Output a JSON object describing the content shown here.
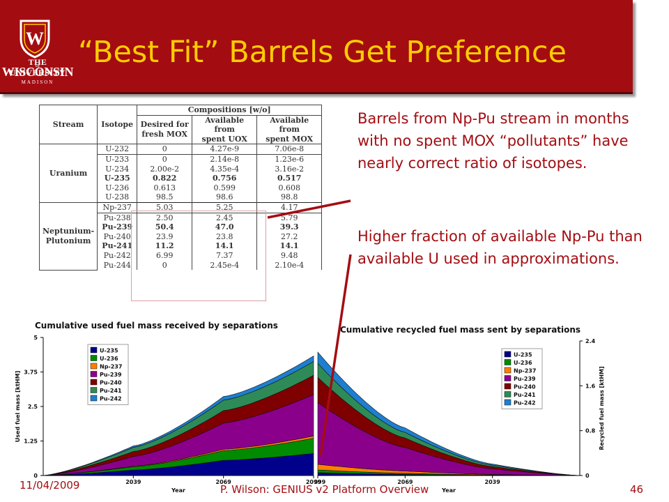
{
  "slide": {
    "title": "“Best Fit” Barrels Get Preference",
    "logo": {
      "line1": "THE UNIVERSITY",
      "line2": "of",
      "line3": "WISCONSIN",
      "line4": "MADISON",
      "crest_letter": "W"
    },
    "paragraphs": [
      "Barrels from Np-Pu stream in months with no spent MOX “pollutants” have nearly correct ratio of isotopes.",
      "Higher fraction of available Np-Pu than available U used in approximations."
    ],
    "footer": {
      "date": "11/04/2009",
      "author": "P. Wilson: GENIUS v2 Platform Overview",
      "page": "46"
    },
    "colors": {
      "banner": "#a30d12",
      "title": "#ffcc00",
      "body_text": "#a30d12",
      "pointer": "#a30d12"
    }
  },
  "table": {
    "h_stream": "Stream",
    "h_isotope": "Isotope",
    "h_group": "Compositions [w/o]",
    "h_col1a": "Desired for",
    "h_col1b": "fresh MOX",
    "h_col2a": "Available from",
    "h_col2b": "spent UOX",
    "h_col3a": "Available from",
    "h_col3b": "spent MOX",
    "group1": "Uranium",
    "group2a": "Neptunium-",
    "group2b": "Plutonium",
    "rows": [
      [
        "U-232",
        "0",
        "4.27e-9",
        "7.06e-8"
      ],
      [
        "U-233",
        "0",
        "2.14e-8",
        "1.23e-6"
      ],
      [
        "U-234",
        "2.00e-2",
        "4.35e-4",
        "3.16e-2"
      ],
      [
        "U-235",
        "0.822",
        "0.756",
        "0.517"
      ],
      [
        "U-236",
        "0.613",
        "0.599",
        "0.608"
      ],
      [
        "U-238",
        "98.5",
        "98.6",
        "98.8"
      ],
      [
        "Np-237",
        "5.03",
        "5.25",
        "4.17"
      ],
      [
        "Pu-238",
        "2.50",
        "2.45",
        "5.79"
      ],
      [
        "Pu-239",
        "50.4",
        "47.0",
        "39.3"
      ],
      [
        "Pu-240",
        "23.9",
        "23.8",
        "27.2"
      ],
      [
        "Pu-241",
        "11.2",
        "14.1",
        "14.1"
      ],
      [
        "Pu-242",
        "6.99",
        "7.37",
        "9.48"
      ],
      [
        "Pu-244",
        "0",
        "2.45e-4",
        "2.10e-4"
      ]
    ]
  },
  "chart_data": [
    {
      "type": "area",
      "title": "Cumulative used fuel mass received by separations",
      "xlabel": "Year",
      "ylabel": "Used fuel mass [ktHM]",
      "x": [
        2009,
        2039,
        2069,
        2099
      ],
      "xticks": [
        "2039",
        "2069",
        "2099"
      ],
      "ylim": [
        0,
        5
      ],
      "yticks": [
        "0",
        "1.25",
        "2.5",
        "3.75",
        "5"
      ],
      "legend_position": "top-left",
      "series": [
        {
          "name": "U-235",
          "color": "#00008b",
          "values": [
            0,
            0.2,
            0.55,
            0.8
          ]
        },
        {
          "name": "U-236",
          "color": "#008b00",
          "values": [
            0,
            0.12,
            0.35,
            0.55
          ]
        },
        {
          "name": "Np-237",
          "color": "#ff7f00",
          "values": [
            0,
            0.02,
            0.05,
            0.08
          ]
        },
        {
          "name": "Pu-239",
          "color": "#8b008b",
          "values": [
            0,
            0.35,
            0.95,
            1.5
          ]
        },
        {
          "name": "Pu-240",
          "color": "#7f0000",
          "values": [
            0,
            0.18,
            0.45,
            0.7
          ]
        },
        {
          "name": "Pu-241",
          "color": "#2e8b57",
          "values": [
            0,
            0.15,
            0.38,
            0.5
          ]
        },
        {
          "name": "Pu-242",
          "color": "#1e7fd0",
          "values": [
            0,
            0.05,
            0.13,
            0.2
          ]
        }
      ]
    },
    {
      "type": "area",
      "title": "Cumulative recycled fuel mass sent by separations",
      "xlabel": "Year",
      "ylabel": "Recycled fuel mass [ktHM]",
      "x": [
        2099,
        2069,
        2039,
        2009
      ],
      "xticks": [
        "2099",
        "2069",
        "2039"
      ],
      "ylim": [
        0,
        2.4
      ],
      "yticks": [
        "0",
        "0.8",
        "1.6",
        "2.4"
      ],
      "legend_position": "top-right",
      "series": [
        {
          "name": "U-235",
          "color": "#00008b",
          "values": [
            0.05,
            0.02,
            0.005,
            0
          ]
        },
        {
          "name": "U-236",
          "color": "#008b00",
          "values": [
            0.05,
            0.02,
            0.005,
            0
          ]
        },
        {
          "name": "Np-237",
          "color": "#ff7f00",
          "values": [
            0.1,
            0.04,
            0.01,
            0
          ]
        },
        {
          "name": "Pu-239",
          "color": "#8b008b",
          "values": [
            1.1,
            0.42,
            0.1,
            0
          ]
        },
        {
          "name": "Pu-240",
          "color": "#7f0000",
          "values": [
            0.45,
            0.17,
            0.04,
            0
          ]
        },
        {
          "name": "Pu-241",
          "color": "#2e8b57",
          "values": [
            0.25,
            0.1,
            0.025,
            0
          ]
        },
        {
          "name": "Pu-242",
          "color": "#1e7fd0",
          "values": [
            0.2,
            0.08,
            0.02,
            0
          ]
        }
      ]
    }
  ]
}
